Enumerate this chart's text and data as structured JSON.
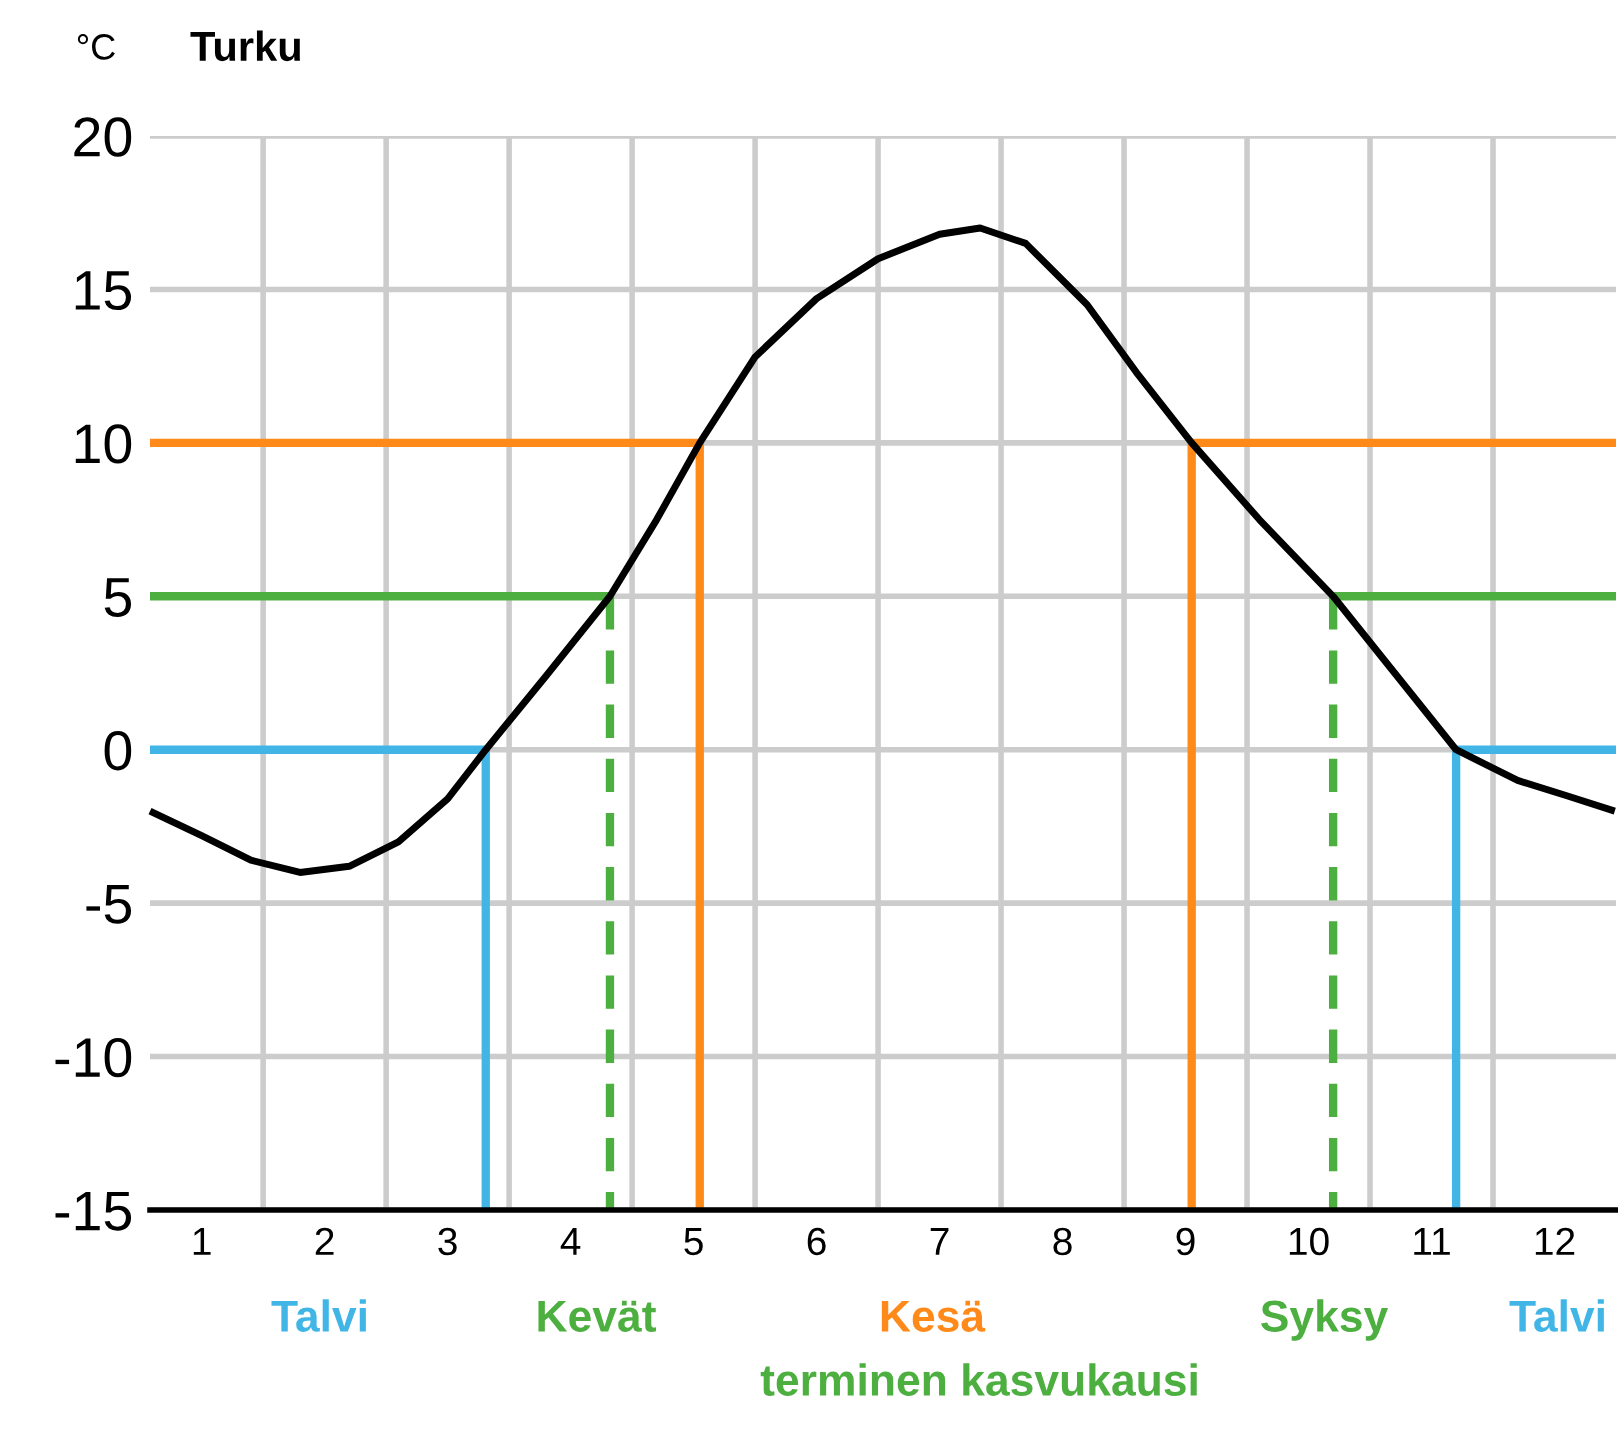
{
  "chart_data": {
    "type": "line",
    "title": "Turku",
    "ylabel": "°C",
    "xlim": [
      0.58,
      12.5
    ],
    "ylim": [
      -15,
      20
    ],
    "yticks": [
      -15,
      -10,
      -5,
      0,
      5,
      10,
      15,
      20
    ],
    "xticks": [
      1,
      2,
      3,
      4,
      5,
      6,
      7,
      8,
      9,
      10,
      11,
      12,
      {
        "value": 1.5,
        "label": null
      },
      {
        "value": 2.5,
        "label": null
      },
      {
        "value": 3.5,
        "label": null
      },
      {
        "value": 4.5,
        "label": null
      },
      {
        "value": 5.5,
        "label": null
      },
      {
        "value": 6.5,
        "label": null
      },
      {
        "value": 7.5,
        "label": null
      },
      {
        "value": 8.5,
        "label": null
      },
      {
        "value": 9.5,
        "label": null
      },
      {
        "value": 10.5,
        "label": null
      },
      {
        "value": 11.5,
        "label": null
      }
    ],
    "grid": true,
    "marker": "none",
    "series": [
      {
        "color": "#000000",
        "line_style": "solid",
        "x": [
          0.58,
          1.0,
          1.4,
          1.8,
          2.2,
          2.6,
          3.0,
          3.31,
          3.8,
          4.32,
          4.7,
          5.05,
          5.5,
          6.0,
          6.5,
          7.0,
          7.33,
          7.7,
          8.2,
          8.6,
          9.05,
          9.6,
          10.2,
          10.7,
          11.2,
          11.7,
          12.1,
          12.49
        ],
        "values": [
          -2,
          -2.8,
          -3.6,
          -4,
          -3.8,
          -3,
          -1.6,
          0,
          2.4,
          5,
          7.5,
          10,
          12.8,
          14.7,
          16,
          16.8,
          17,
          16.5,
          14.5,
          12.3,
          10,
          7.5,
          5,
          2.5,
          0,
          -1,
          -1.5,
          -2
        ]
      },
      {
        "color": "#41b6e6",
        "line_style": "solid",
        "x": [
          0.58,
          3.31
        ],
        "values": [
          0,
          0
        ]
      },
      {
        "color": "#41b6e6",
        "line_style": "solid",
        "x": [
          3.31,
          3.31
        ],
        "values": [
          0,
          -15
        ]
      },
      {
        "color": "#41b6e6",
        "line_style": "solid",
        "x": [
          11.2,
          11.2
        ],
        "values": [
          0,
          -15
        ]
      },
      {
        "color": "#41b6e6",
        "line_style": "solid",
        "x": [
          11.2,
          12.5
        ],
        "values": [
          0,
          0
        ]
      },
      {
        "color": "#4caf3f",
        "line_style": "solid",
        "x": [
          0.58,
          4.32
        ],
        "values": [
          5,
          5
        ]
      },
      {
        "color": "#4caf3f",
        "line_style": "dashed",
        "x": [
          4.32,
          4.32
        ],
        "values": [
          5,
          -15
        ]
      },
      {
        "color": "#4caf3f",
        "line_style": "dashed",
        "x": [
          10.2,
          10.2
        ],
        "values": [
          5,
          -15
        ]
      },
      {
        "color": "#4caf3f",
        "line_style": "solid",
        "x": [
          10.2,
          12.5
        ],
        "values": [
          5,
          5
        ]
      },
      {
        "color": "#ff8a1a",
        "line_style": "solid",
        "x": [
          0.58,
          5.05
        ],
        "values": [
          10,
          10
        ]
      },
      {
        "color": "#ff8a1a",
        "line_style": "solid",
        "x": [
          5.05,
          5.05
        ],
        "values": [
          10,
          -15
        ]
      },
      {
        "color": "#ff8a1a",
        "line_style": "solid",
        "x": [
          9.05,
          9.05
        ],
        "values": [
          10,
          -15
        ]
      },
      {
        "color": "#ff8a1a",
        "line_style": "solid",
        "x": [
          9.05,
          12.5
        ],
        "values": [
          10,
          10
        ]
      }
    ],
    "annotations": [
      "Talvi",
      "Kevät",
      "Kesä",
      "Syksy",
      "Talvi",
      "terminen kasvukausi"
    ]
  }
}
